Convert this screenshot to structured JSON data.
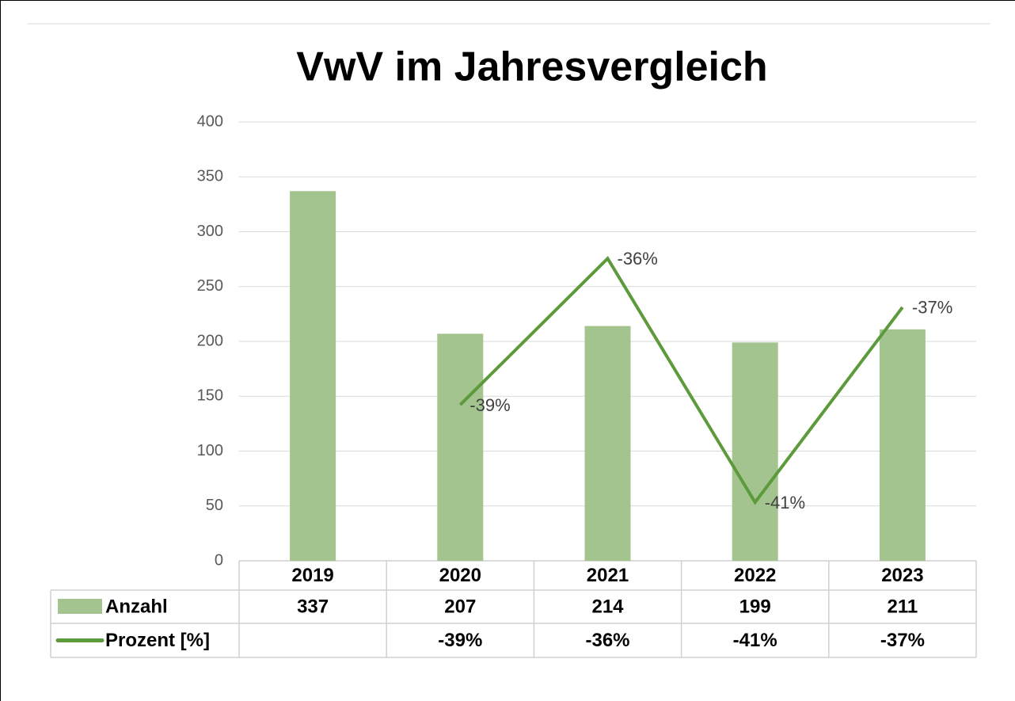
{
  "chart_data": {
    "type": "bar",
    "title": "VwV im Jahresvergleich",
    "categories": [
      "2019",
      "2020",
      "2021",
      "2022",
      "2023"
    ],
    "series": [
      {
        "name": "Anzahl",
        "type": "bar",
        "color": "#a3c48e",
        "values": [
          337,
          207,
          214,
          199,
          211
        ]
      },
      {
        "name": "Prozent [%]",
        "type": "line",
        "axis": "y2",
        "color": "#5c9a3b",
        "values": [
          null,
          -39,
          -36,
          -41,
          -37
        ],
        "value_labels": [
          null,
          "-39%",
          "-36%",
          "-41%",
          "-37%"
        ]
      }
    ],
    "ylim": [
      0,
      400
    ],
    "yticks": [
      0,
      50,
      100,
      150,
      200,
      250,
      300,
      350,
      400
    ],
    "y2lim": [
      -42.2,
      -33.2
    ],
    "grid": true
  }
}
